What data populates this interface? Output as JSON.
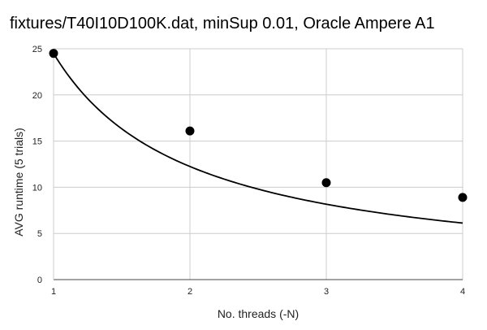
{
  "chart_data": {
    "type": "scatter",
    "title": "fixtures/T40I10D100K.dat, minSup 0.01, Oracle Ampere A1",
    "xlabel": "No. threads (-N)",
    "ylabel": "AVG runtime (5 trials)",
    "x_ticks": [
      "1",
      "2",
      "3",
      "4"
    ],
    "y_ticks": [
      "0",
      "5",
      "10",
      "15",
      "20",
      "25"
    ],
    "xlim": [
      1,
      4
    ],
    "ylim": [
      0,
      25
    ],
    "grid": true,
    "legend": "none",
    "series": [
      {
        "points": [
          {
            "x": 1,
            "y": 24.5
          },
          {
            "x": 2,
            "y": 16.1
          },
          {
            "x": 3,
            "y": 10.5
          },
          {
            "x": 4,
            "y": 8.9
          }
        ],
        "color": "#000000"
      }
    ],
    "trendline": {
      "type": "power",
      "a": 24.5,
      "b": -1.0,
      "color": "#000000"
    }
  }
}
